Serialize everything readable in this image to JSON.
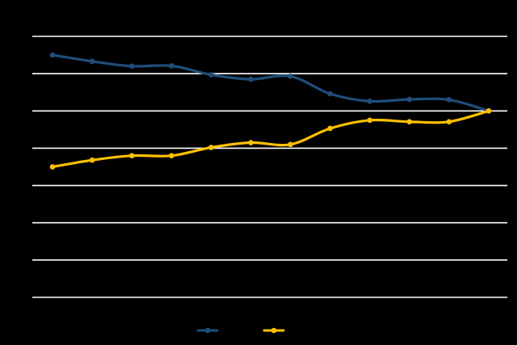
{
  "chart_data": {
    "type": "line",
    "title": "",
    "xlabel": "",
    "ylabel": "",
    "x": [
      1,
      2,
      3,
      4,
      5,
      6,
      7,
      8,
      9,
      10,
      11,
      12
    ],
    "ylim": [
      0,
      7
    ],
    "yticks": [
      0,
      1,
      2,
      3,
      4,
      5,
      6,
      7
    ],
    "grid": true,
    "legend": "bottom-center",
    "series": [
      {
        "name": "",
        "color": "#1f4e79",
        "values": [
          6.5,
          6.33,
          6.2,
          6.21,
          5.97,
          5.85,
          5.93,
          5.46,
          5.26,
          5.31,
          5.3,
          5.0
        ]
      },
      {
        "name": "",
        "color": "#ffc000",
        "values": [
          3.5,
          3.68,
          3.8,
          3.8,
          4.02,
          4.15,
          4.1,
          4.53,
          4.75,
          4.71,
          4.71,
          5.0
        ]
      }
    ]
  }
}
